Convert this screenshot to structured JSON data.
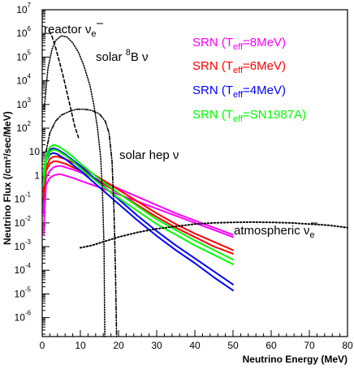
{
  "chart_data": {
    "type": "line",
    "title": "",
    "xlabel": "Neutrino Energy (MeV)",
    "ylabel": "Neutrino Flux (/cm²/sec/MeV)",
    "xlim": [
      0,
      80
    ],
    "ylim_log10": [
      -6.8,
      7
    ],
    "y_scale": "log",
    "grid": false,
    "legend_position": "top-right",
    "x_ticks": [
      0,
      10,
      20,
      30,
      40,
      50,
      60,
      70,
      80
    ],
    "y_ticks": [
      {
        "exp": 7,
        "base": "10",
        "sup": "7"
      },
      {
        "exp": 6,
        "base": "10",
        "sup": "6"
      },
      {
        "exp": 5,
        "base": "10",
        "sup": "5"
      },
      {
        "exp": 4,
        "base": "10",
        "sup": "4"
      },
      {
        "exp": 3,
        "base": "10",
        "sup": "3"
      },
      {
        "exp": 2,
        "base": "10",
        "sup": "2"
      },
      {
        "exp": 1,
        "base": "10",
        "sup": ""
      },
      {
        "exp": 0,
        "base": "1",
        "sup": ""
      },
      {
        "exp": -1,
        "base": "10",
        "sup": "-1"
      },
      {
        "exp": -2,
        "base": "10",
        "sup": "-2"
      },
      {
        "exp": -3,
        "base": "10",
        "sup": "-3"
      },
      {
        "exp": -4,
        "base": "10",
        "sup": "-4"
      },
      {
        "exp": -5,
        "base": "10",
        "sup": "-5"
      },
      {
        "exp": -6,
        "base": "10",
        "sup": "-6"
      }
    ],
    "legend": [
      {
        "prefix": "SRN (T",
        "sub": "eff",
        "suffix": "=8MeV)",
        "color": "#ff00ff"
      },
      {
        "prefix": "SRN (T",
        "sub": "eff",
        "suffix": "=6MeV)",
        "color": "#ff0000"
      },
      {
        "prefix": "SRN (T",
        "sub": "eff",
        "suffix": "=4MeV)",
        "color": "#0000ff"
      },
      {
        "prefix": "SRN (T",
        "sub": "eff",
        "suffix": "=SN1987A)",
        "color": "#00ff00"
      }
    ],
    "annotations": {
      "reactor": {
        "text": "reactor ",
        "nu": "ν",
        "sub": "e"
      },
      "solar_b8": {
        "prefix": "solar ",
        "sup": "8",
        "suffix": "B ν"
      },
      "solar_hep": {
        "text": "solar hep ν"
      },
      "atmospheric": {
        "text": "atmospheric ",
        "nu": "ν",
        "sub": "e"
      }
    },
    "series": [
      {
        "name": "SRN (Teff=8MeV)",
        "color": "#ff00ff",
        "style": "solid",
        "points": [
          [
            0.3,
            -2.5
          ],
          [
            1,
            -0.4
          ],
          [
            2,
            -0.1
          ],
          [
            3,
            0.0
          ],
          [
            4,
            0.05
          ],
          [
            5,
            0.05
          ],
          [
            6,
            0.0
          ],
          [
            8,
            -0.1
          ],
          [
            10,
            -0.22
          ],
          [
            15,
            -0.5
          ],
          [
            20,
            -0.8
          ],
          [
            25,
            -1.1
          ],
          [
            30,
            -1.4
          ],
          [
            35,
            -1.7
          ],
          [
            40,
            -2.0
          ],
          [
            45,
            -2.3
          ],
          [
            50,
            -2.6
          ]
        ]
      },
      {
        "name": "SRN (Teff=8MeV)",
        "color": "#ff00ff",
        "style": "solid",
        "points": [
          [
            0.3,
            -1.6
          ],
          [
            1,
            -0.1
          ],
          [
            2,
            0.2
          ],
          [
            3,
            0.35
          ],
          [
            4,
            0.4
          ],
          [
            5,
            0.4
          ],
          [
            6,
            0.35
          ],
          [
            8,
            0.25
          ],
          [
            10,
            0.13
          ],
          [
            15,
            -0.2
          ],
          [
            20,
            -0.55
          ],
          [
            25,
            -0.9
          ],
          [
            30,
            -1.25
          ],
          [
            35,
            -1.6
          ],
          [
            40,
            -1.9
          ],
          [
            45,
            -2.2
          ],
          [
            50,
            -2.5
          ]
        ]
      },
      {
        "name": "SRN (Teff=6MeV)",
        "color": "#ff0000",
        "style": "solid",
        "points": [
          [
            0.3,
            -1.0
          ],
          [
            1,
            0.2
          ],
          [
            2,
            0.5
          ],
          [
            3,
            0.6
          ],
          [
            4,
            0.6
          ],
          [
            5,
            0.55
          ],
          [
            6,
            0.5
          ],
          [
            8,
            0.35
          ],
          [
            10,
            0.2
          ],
          [
            15,
            -0.25
          ],
          [
            20,
            -0.75
          ],
          [
            25,
            -1.25
          ],
          [
            30,
            -1.75
          ],
          [
            35,
            -2.2
          ],
          [
            40,
            -2.6
          ],
          [
            45,
            -3.0
          ],
          [
            50,
            -3.3
          ]
        ]
      },
      {
        "name": "SRN (Teff=6MeV)",
        "color": "#ff0000",
        "style": "solid",
        "points": [
          [
            0.3,
            -0.7
          ],
          [
            1,
            0.35
          ],
          [
            2,
            0.7
          ],
          [
            3,
            0.8
          ],
          [
            4,
            0.8
          ],
          [
            5,
            0.75
          ],
          [
            6,
            0.7
          ],
          [
            8,
            0.55
          ],
          [
            10,
            0.4
          ],
          [
            15,
            -0.1
          ],
          [
            20,
            -0.6
          ],
          [
            25,
            -1.1
          ],
          [
            30,
            -1.6
          ],
          [
            35,
            -2.05
          ],
          [
            40,
            -2.45
          ],
          [
            45,
            -2.8
          ],
          [
            50,
            -3.15
          ]
        ]
      },
      {
        "name": "SRN (Teff=4MeV)",
        "color": "#0000ff",
        "style": "solid",
        "points": [
          [
            0.3,
            -0.3
          ],
          [
            1,
            0.6
          ],
          [
            2,
            0.9
          ],
          [
            3,
            0.95
          ],
          [
            4,
            0.9
          ],
          [
            5,
            0.8
          ],
          [
            6,
            0.7
          ],
          [
            8,
            0.45
          ],
          [
            10,
            0.2
          ],
          [
            15,
            -0.5
          ],
          [
            20,
            -1.2
          ],
          [
            25,
            -1.9
          ],
          [
            30,
            -2.55
          ],
          [
            35,
            -3.15
          ],
          [
            40,
            -3.7
          ],
          [
            45,
            -4.3
          ],
          [
            50,
            -4.85
          ]
        ]
      },
      {
        "name": "SRN (Teff=4MeV)",
        "color": "#0000ff",
        "style": "solid",
        "points": [
          [
            0.3,
            0.0
          ],
          [
            1,
            0.8
          ],
          [
            2,
            1.1
          ],
          [
            3,
            1.15
          ],
          [
            4,
            1.1
          ],
          [
            5,
            1.0
          ],
          [
            6,
            0.9
          ],
          [
            8,
            0.65
          ],
          [
            10,
            0.4
          ],
          [
            15,
            -0.3
          ],
          [
            20,
            -1.0
          ],
          [
            25,
            -1.7
          ],
          [
            30,
            -2.35
          ],
          [
            35,
            -2.95
          ],
          [
            40,
            -3.5
          ],
          [
            45,
            -4.05
          ],
          [
            50,
            -4.6
          ]
        ]
      },
      {
        "name": "SRN (Teff=SN1987A)",
        "color": "#00ff00",
        "style": "solid",
        "points": [
          [
            0.3,
            -0.4
          ],
          [
            1,
            0.6
          ],
          [
            2,
            1.0
          ],
          [
            3,
            1.1
          ],
          [
            4,
            1.05
          ],
          [
            5,
            0.95
          ],
          [
            6,
            0.85
          ],
          [
            8,
            0.6
          ],
          [
            10,
            0.3
          ],
          [
            15,
            -0.35
          ],
          [
            20,
            -0.95
          ],
          [
            25,
            -1.5
          ],
          [
            30,
            -2.05
          ],
          [
            35,
            -2.5
          ],
          [
            40,
            -2.95
          ],
          [
            45,
            -3.35
          ],
          [
            50,
            -3.75
          ]
        ]
      },
      {
        "name": "SRN (Teff=SN1987A)",
        "color": "#00ff00",
        "style": "solid",
        "points": [
          [
            0.3,
            0.0
          ],
          [
            1,
            0.85
          ],
          [
            2,
            1.2
          ],
          [
            3,
            1.3
          ],
          [
            4,
            1.25
          ],
          [
            5,
            1.15
          ],
          [
            6,
            1.05
          ],
          [
            8,
            0.8
          ],
          [
            10,
            0.5
          ],
          [
            15,
            -0.15
          ],
          [
            20,
            -0.75
          ],
          [
            25,
            -1.3
          ],
          [
            30,
            -1.85
          ],
          [
            35,
            -2.3
          ],
          [
            40,
            -2.75
          ],
          [
            45,
            -3.15
          ],
          [
            50,
            -3.55
          ]
        ]
      },
      {
        "name": "reactor",
        "color": "#000000",
        "style": "dashed",
        "points": [
          [
            1.8,
            6.1
          ],
          [
            2.5,
            5.9
          ],
          [
            3.5,
            5.4
          ],
          [
            4.5,
            4.8
          ],
          [
            5.5,
            4.2
          ],
          [
            6.5,
            3.5
          ],
          [
            7.5,
            2.8
          ],
          [
            8.5,
            2.1
          ],
          [
            9.5,
            1.6
          ]
        ]
      },
      {
        "name": "solar 8B",
        "color": "#000000",
        "style": "dotted",
        "points": [
          [
            0.5,
            2.8
          ],
          [
            1.5,
            4.5
          ],
          [
            2.5,
            5.3
          ],
          [
            3.5,
            5.7
          ],
          [
            5,
            5.9
          ],
          [
            6.5,
            5.85
          ],
          [
            8,
            5.6
          ],
          [
            9.5,
            5.2
          ],
          [
            11,
            4.6
          ],
          [
            12.5,
            3.8
          ],
          [
            13.5,
            3.0
          ],
          [
            14.5,
            2.0
          ],
          [
            15.3,
            0.8
          ],
          [
            15.8,
            -0.8
          ],
          [
            16.2,
            -3.0
          ],
          [
            16.4,
            -6.8
          ]
        ]
      },
      {
        "name": "solar hep",
        "color": "#000000",
        "style": "dashdot",
        "points": [
          [
            1,
            1.0
          ],
          [
            2,
            1.8
          ],
          [
            3.5,
            2.3
          ],
          [
            5,
            2.55
          ],
          [
            7,
            2.7
          ],
          [
            9,
            2.8
          ],
          [
            11,
            2.8
          ],
          [
            13,
            2.75
          ],
          [
            15,
            2.6
          ],
          [
            16.5,
            2.3
          ],
          [
            17.5,
            1.8
          ],
          [
            18.3,
            0.6
          ],
          [
            18.8,
            -1.5
          ],
          [
            19.2,
            -4.0
          ],
          [
            19.5,
            -6.8
          ]
        ]
      },
      {
        "name": "atmospheric",
        "color": "#000000",
        "style": "dotted-thick",
        "points": [
          [
            10,
            -3.05
          ],
          [
            13,
            -2.95
          ],
          [
            16,
            -2.8
          ],
          [
            20,
            -2.6
          ],
          [
            25,
            -2.4
          ],
          [
            30,
            -2.25
          ],
          [
            35,
            -2.15
          ],
          [
            40,
            -2.05
          ],
          [
            45,
            -2.0
          ],
          [
            50,
            -1.98
          ],
          [
            55,
            -1.97
          ],
          [
            60,
            -1.98
          ],
          [
            65,
            -2.0
          ],
          [
            70,
            -2.05
          ],
          [
            75,
            -2.1
          ],
          [
            80,
            -2.2
          ]
        ]
      }
    ]
  }
}
